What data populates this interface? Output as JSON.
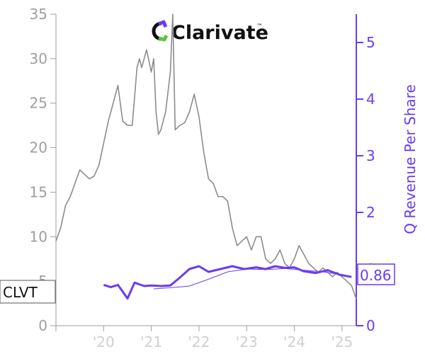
{
  "chart_data": {
    "type": "line",
    "ticker": "CLVT",
    "company": "Clarivate",
    "trademark": "™",
    "ylabel_right": "Q Revenue Per Share",
    "ylim_left": [
      0,
      35
    ],
    "ylim_right": [
      0,
      5.5
    ],
    "yticks_left": [
      "0",
      "5",
      "10",
      "15",
      "20",
      "25",
      "30",
      "35"
    ],
    "yticks_right": [
      "0",
      "1",
      "2",
      "3",
      "4",
      "5"
    ],
    "xticks": [
      {
        "label": "'20",
        "x": 2020.0
      },
      {
        "label": "'21",
        "x": 2021.0
      },
      {
        "label": "'22",
        "x": 2022.0
      },
      {
        "label": "'23",
        "x": 2023.0
      },
      {
        "label": "'24",
        "x": 2024.0
      },
      {
        "label": "'25",
        "x": 2025.0
      }
    ],
    "xlim": [
      2019.0,
      2025.3
    ],
    "last_value_label": "0.86",
    "grid": false,
    "colors": {
      "price": "#8c8c8c",
      "revenue": "#6a3cf0",
      "axis_left": "#9e9e9e",
      "axis_right": "#6a3cf0"
    },
    "series": [
      {
        "axis": "left",
        "x": [
          2019.0,
          2019.1,
          2019.2,
          2019.3,
          2019.4,
          2019.5,
          2019.6,
          2019.7,
          2019.8,
          2019.9,
          2020.0,
          2020.1,
          2020.2,
          2020.3,
          2020.4,
          2020.5,
          2020.6,
          2020.7,
          2020.75,
          2020.8,
          2020.9,
          2021.0,
          2021.05,
          2021.1,
          2021.15,
          2021.2,
          2021.3,
          2021.4,
          2021.45,
          2021.5,
          2021.6,
          2021.7,
          2021.8,
          2021.9,
          2022.0,
          2022.1,
          2022.2,
          2022.3,
          2022.4,
          2022.5,
          2022.6,
          2022.7,
          2022.8,
          2022.9,
          2023.0,
          2023.1,
          2023.2,
          2023.3,
          2023.4,
          2023.5,
          2023.6,
          2023.7,
          2023.8,
          2023.9,
          2024.0,
          2024.1,
          2024.2,
          2024.3,
          2024.4,
          2024.5,
          2024.6,
          2024.7,
          2024.8,
          2024.9,
          2025.0,
          2025.1,
          2025.2,
          2025.3
        ],
        "values": [
          9.5,
          11,
          13.5,
          14.5,
          16,
          17.5,
          17,
          16.5,
          16.8,
          18,
          20.5,
          23,
          25,
          27,
          23,
          22.5,
          22.5,
          29,
          30,
          29,
          31,
          28.5,
          30,
          24,
          21.5,
          22,
          24,
          28.5,
          35,
          22,
          22.5,
          22.8,
          24,
          26,
          23.5,
          19.5,
          16.5,
          16,
          14.5,
          14.5,
          14,
          11,
          9,
          9.5,
          10,
          8.5,
          10,
          10,
          7.5,
          7,
          7.5,
          8.5,
          7,
          6.5,
          7.5,
          9,
          8,
          7,
          6.5,
          6,
          6.5,
          6,
          5.5,
          6,
          5.5,
          5,
          4.5,
          3
        ]
      },
      {
        "axis": "right",
        "x": [
          2020.0,
          2020.15,
          2020.3,
          2020.5,
          2020.65,
          2020.85,
          2021.0,
          2021.2,
          2021.4,
          2021.6,
          2021.8,
          2022.0,
          2022.2,
          2022.45,
          2022.7,
          2022.95,
          2023.2,
          2023.4,
          2023.6,
          2023.8,
          2024.0,
          2024.2,
          2024.45,
          2024.7,
          2024.95,
          2025.2
        ],
        "values": [
          0.72,
          0.68,
          0.72,
          0.48,
          0.76,
          0.7,
          0.71,
          0.7,
          0.71,
          0.85,
          1.0,
          1.05,
          0.95,
          1.0,
          1.05,
          1.0,
          1.03,
          1.0,
          1.05,
          1.02,
          1.03,
          0.96,
          0.93,
          0.98,
          0.9,
          0.86
        ]
      },
      {
        "axis": "right",
        "x": [
          2021.05,
          2021.4,
          2021.8,
          2022.2,
          2022.6,
          2023.0,
          2023.4,
          2023.8,
          2024.2,
          2024.6,
          2025.0
        ],
        "values": [
          0.65,
          0.67,
          0.7,
          0.82,
          0.95,
          1.0,
          0.99,
          1.01,
          0.98,
          0.95,
          0.9
        ]
      }
    ]
  }
}
